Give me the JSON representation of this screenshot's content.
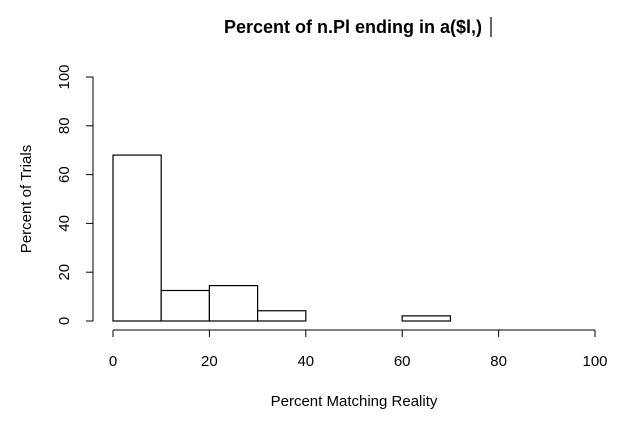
{
  "chart_data": {
    "type": "bar",
    "title": "Percent of n.Pl ending in a($l,)",
    "xlabel": "Percent Matching Reality",
    "ylabel": "Percent of Trials",
    "xlim": [
      0,
      100
    ],
    "ylim": [
      0,
      100
    ],
    "x_ticks": [
      0,
      20,
      40,
      60,
      80,
      100
    ],
    "y_ticks": [
      0,
      20,
      40,
      60,
      80,
      100
    ],
    "bins": [
      {
        "from": 0,
        "to": 10,
        "value": 68
      },
      {
        "from": 10,
        "to": 20,
        "value": 12.5
      },
      {
        "from": 20,
        "to": 30,
        "value": 14.5
      },
      {
        "from": 30,
        "to": 40,
        "value": 4.2
      },
      {
        "from": 40,
        "to": 50,
        "value": 0
      },
      {
        "from": 50,
        "to": 60,
        "value": 0
      },
      {
        "from": 60,
        "to": 70,
        "value": 2.1
      }
    ],
    "grid": false,
    "legend": "none"
  }
}
